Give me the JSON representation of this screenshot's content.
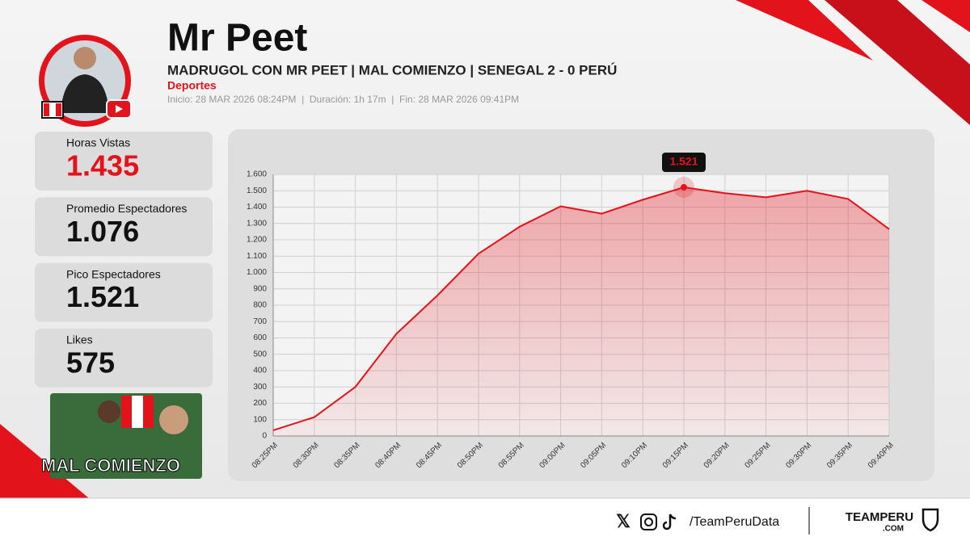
{
  "header": {
    "title": "Mr Peet",
    "subtitle": "MADRUGOL CON MR PEET | MAL COMIENZO | SENEGAL 2 - 0 PERÚ",
    "category": "Deportes",
    "info": "Inicio: 28 MAR 2026 08:24PM  |  Duración: 1h 17m  |  Fin: 28 MAR 2026 09:41PM"
  },
  "stats": [
    {
      "label": "Horas Vistas",
      "value": "1.435"
    },
    {
      "label": "Promedio Espectadores",
      "value": "1.076"
    },
    {
      "label": "Pico Espectadores",
      "value": "1.521"
    },
    {
      "label": "Likes",
      "value": "575"
    }
  ],
  "thumbnail": {
    "text": "MAL COMIENZO"
  },
  "footer": {
    "handle": "/TeamPeruData",
    "brand": "TEAMPERU",
    "brand_suffix": ".COM"
  },
  "chart_data": {
    "type": "area",
    "color": "#e3131b",
    "grid": true,
    "categories": [
      "08:25PM",
      "08:30PM",
      "08:35PM",
      "08:40PM",
      "08:45PM",
      "08:50PM",
      "08:55PM",
      "09:00PM",
      "09:05PM",
      "09:10PM",
      "09:15PM",
      "09:20PM",
      "09:25PM",
      "09:30PM",
      "09:35PM",
      "09:40PM"
    ],
    "values": [
      35,
      115,
      300,
      625,
      860,
      1115,
      1280,
      1405,
      1360,
      1445,
      1521,
      1485,
      1460,
      1500,
      1450,
      1265
    ],
    "value_labels": [
      null,
      null,
      null,
      null,
      null,
      null,
      null,
      null,
      null,
      null,
      "1.521",
      null,
      null,
      null,
      null,
      null
    ],
    "ylim": [
      0,
      1600
    ],
    "yticks": [
      0,
      100,
      200,
      300,
      400,
      500,
      600,
      700,
      800,
      900,
      {
        "value": 1000,
        "label": "1.000"
      },
      {
        "value": 1100,
        "label": "1.100"
      },
      {
        "value": 1200,
        "label": "1.200"
      },
      {
        "value": 1300,
        "label": "1.300"
      },
      {
        "value": 1400,
        "label": "1.400"
      },
      {
        "value": 1500,
        "label": "1.500"
      },
      {
        "value": 1600,
        "label": "1.600"
      }
    ]
  }
}
